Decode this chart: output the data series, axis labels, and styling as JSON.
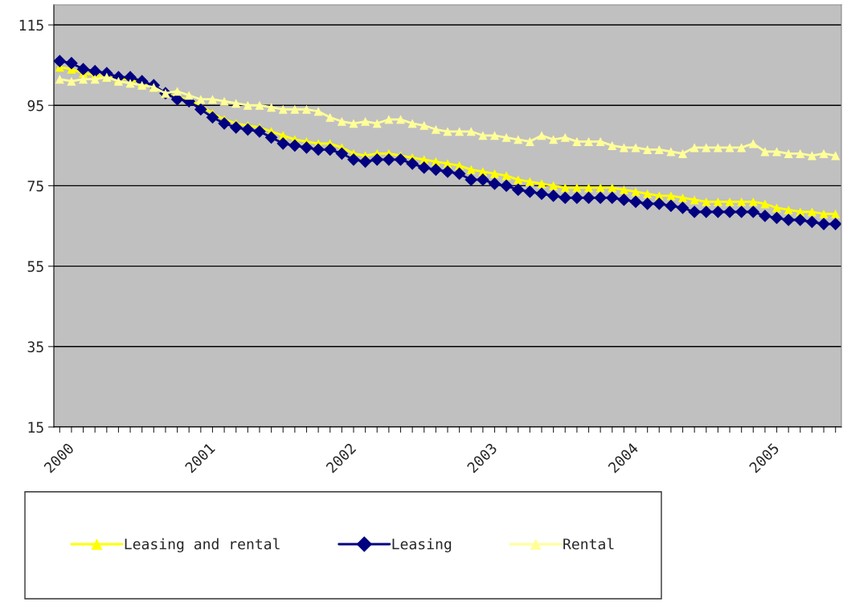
{
  "chart_data": {
    "type": "line",
    "ylim": [
      15,
      120
    ],
    "yticks": [
      15,
      35,
      55,
      75,
      95,
      115
    ],
    "categories": [
      "2000",
      null,
      null,
      null,
      null,
      null,
      null,
      null,
      null,
      null,
      null,
      null,
      "2001",
      null,
      null,
      null,
      null,
      null,
      null,
      null,
      null,
      null,
      null,
      null,
      "2002",
      null,
      null,
      null,
      null,
      null,
      null,
      null,
      null,
      null,
      null,
      null,
      "2003",
      null,
      null,
      null,
      null,
      null,
      null,
      null,
      null,
      null,
      null,
      null,
      "2004",
      null,
      null,
      null,
      null,
      null,
      null,
      null,
      null,
      null,
      null,
      null,
      "2005",
      null,
      null,
      null,
      null,
      null,
      null
    ],
    "grid": "y",
    "legend": "bottom left",
    "series": [
      {
        "name": "Leasing and rental",
        "color": "#ffff00",
        "marker": "triangle",
        "values": [
          104.5,
          104,
          103,
          102.5,
          102,
          101.5,
          101.5,
          100.5,
          99.5,
          98,
          97,
          96.5,
          95,
          93,
          91.5,
          90.5,
          90,
          89.5,
          88.5,
          87.5,
          86.5,
          86,
          85.5,
          85.5,
          84.5,
          83,
          82.5,
          83,
          83,
          82.5,
          82,
          81.5,
          81,
          80.5,
          80,
          79,
          78.5,
          78,
          77.5,
          76.5,
          76,
          75.5,
          75,
          74.5,
          74.5,
          74.5,
          74.5,
          74.5,
          74,
          73.5,
          73,
          72.5,
          72.5,
          72,
          71.5,
          71,
          71,
          71,
          71,
          71,
          70.5,
          69.5,
          69,
          68.5,
          68.5,
          68,
          68
        ]
      },
      {
        "name": "Leasing",
        "color": "#000080",
        "marker": "diamond",
        "values": [
          106,
          105.5,
          104,
          103.5,
          103,
          102,
          102,
          101,
          100,
          98,
          96.5,
          96,
          94,
          92,
          90.5,
          89.5,
          89,
          88.5,
          87,
          85.5,
          85,
          84.5,
          84,
          84,
          83,
          81.5,
          81,
          81.5,
          81.5,
          81.5,
          80.5,
          79.5,
          79,
          78.5,
          78,
          76.5,
          76.5,
          75.5,
          75,
          74,
          73.5,
          73,
          72.5,
          72,
          72,
          72,
          72,
          72,
          71.5,
          71,
          70.5,
          70.5,
          70,
          69.5,
          68.5,
          68.5,
          68.5,
          68.5,
          68.5,
          68.5,
          67.5,
          67,
          66.5,
          66.5,
          66,
          65.5,
          65.5
        ]
      },
      {
        "name": "Rental",
        "color": "#ffff99",
        "marker": "triangle",
        "values": [
          101.5,
          101,
          101.5,
          101.5,
          102,
          101,
          100.5,
          100,
          99.5,
          98,
          98.5,
          97.5,
          96.5,
          96.5,
          96,
          95.5,
          95,
          95,
          94.5,
          94,
          94,
          94,
          93.5,
          92,
          91,
          90.5,
          91,
          90.5,
          91.5,
          91.5,
          90.5,
          90,
          89,
          88.5,
          88.5,
          88.5,
          87.5,
          87.5,
          87,
          86.5,
          86,
          87.5,
          86.5,
          87,
          86,
          86,
          86,
          85,
          84.5,
          84.5,
          84,
          84,
          83.5,
          83,
          84.5,
          84.5,
          84.5,
          84.5,
          84.5,
          85.5,
          83.5,
          83.5,
          83,
          83,
          82.5,
          83,
          82.5
        ]
      }
    ]
  }
}
